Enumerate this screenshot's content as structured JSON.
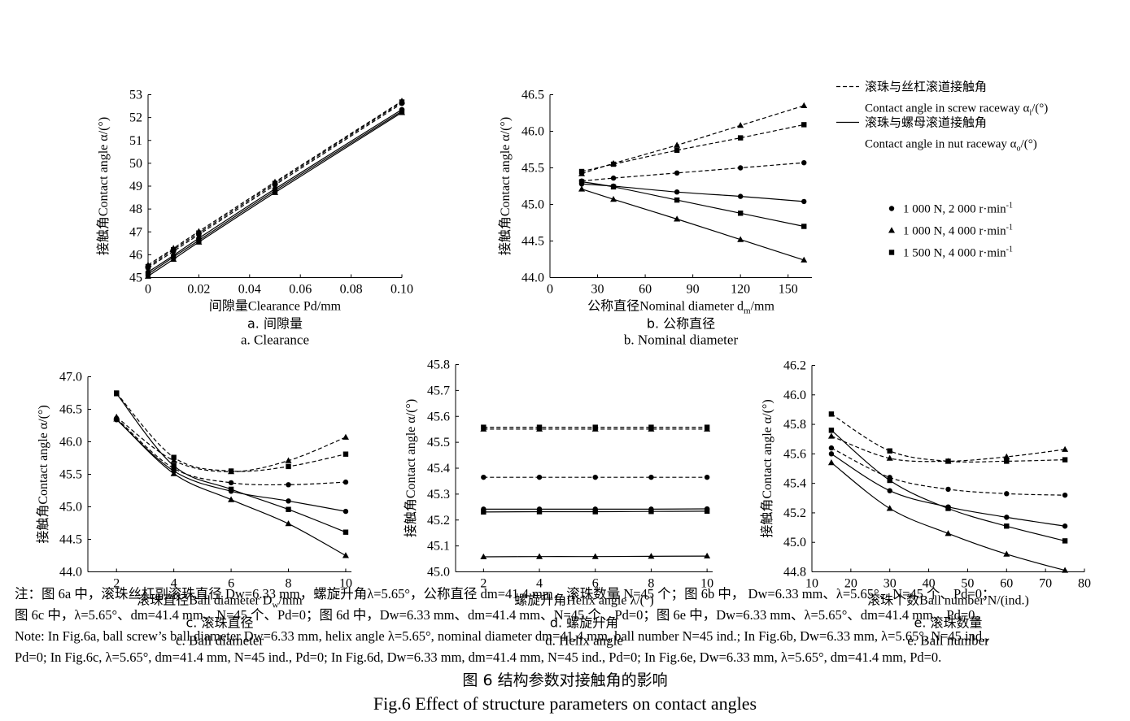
{
  "legend": {
    "line_items": [
      {
        "zh": "滚珠与丝杠滚道接触角",
        "en": "Contact angle in screw raceway α",
        "sub": "i",
        "unit": "/(°)",
        "style": "dashed"
      },
      {
        "zh": "滚珠与螺母滚道接触角",
        "en": "Contact angle in nut raceway α",
        "sub": "o",
        "unit": "/(°)",
        "style": "solid"
      }
    ],
    "marker_items": [
      {
        "label": "1 000 N, 2 000 r·min",
        "sup": "-1",
        "marker": "circle"
      },
      {
        "label": "1 000 N, 4 000 r·min",
        "sup": "-1",
        "marker": "triangle"
      },
      {
        "label": "1 500 N, 4 000 r·min",
        "sup": "-1",
        "marker": "square"
      }
    ]
  },
  "chart_data": [
    {
      "id": "a",
      "type": "line",
      "xlabel": "间隙量Clearance Pd/mm",
      "ylabel": "接触角Contact angle α/(°)",
      "caption_zh": "a. 间隙量",
      "caption_en": "a. Clearance",
      "xlim": [
        0,
        0.1
      ],
      "ylim": [
        45,
        53
      ],
      "xticks": [
        0,
        0.02,
        0.04,
        0.06,
        0.08,
        0.1
      ],
      "xtick_labels": [
        "0",
        "0.02",
        "0.04",
        "0.06",
        "0.08",
        "0.10"
      ],
      "yticks": [
        45,
        46,
        47,
        48,
        49,
        50,
        51,
        52,
        53
      ],
      "ytick_labels": [
        "45",
        "46",
        "47",
        "48",
        "49",
        "50",
        "51",
        "52",
        "53"
      ],
      "series": [
        {
          "marker": "circle",
          "style": "dashed",
          "x": [
            0,
            0.01,
            0.02,
            0.05,
            0.1
          ],
          "y": [
            45.42,
            46.15,
            46.88,
            49.05,
            52.62
          ]
        },
        {
          "marker": "triangle",
          "style": "dashed",
          "x": [
            0,
            0.01,
            0.02,
            0.05,
            0.1
          ],
          "y": [
            45.55,
            46.28,
            47.02,
            49.18,
            52.72
          ]
        },
        {
          "marker": "square",
          "style": "dashed",
          "x": [
            0,
            0.01,
            0.02,
            0.05,
            0.1
          ],
          "y": [
            45.48,
            46.22,
            46.95,
            49.12,
            52.68
          ]
        },
        {
          "marker": "circle",
          "style": "solid",
          "x": [
            0,
            0.01,
            0.02,
            0.05,
            0.1
          ],
          "y": [
            45.24,
            45.97,
            46.72,
            48.88,
            52.35
          ]
        },
        {
          "marker": "triangle",
          "style": "solid",
          "x": [
            0,
            0.01,
            0.02,
            0.05,
            0.1
          ],
          "y": [
            45.06,
            45.8,
            46.55,
            48.72,
            52.22
          ]
        },
        {
          "marker": "square",
          "style": "solid",
          "x": [
            0,
            0.01,
            0.02,
            0.05,
            0.1
          ],
          "y": [
            45.15,
            45.9,
            46.63,
            48.8,
            52.28
          ]
        }
      ]
    },
    {
      "id": "b",
      "type": "line",
      "xlabel": "公称直径Nominal diameter d",
      "xlabel_sub": "m",
      "xlabel_tail": "/mm",
      "ylabel": "接触角Contact angle α/(°)",
      "caption_zh": "b. 公称直径",
      "caption_en": "b. Nominal diameter",
      "xlim": [
        0,
        165
      ],
      "ylim": [
        44.0,
        46.5
      ],
      "xticks": [
        0,
        30,
        60,
        90,
        120,
        150
      ],
      "xtick_labels": [
        "0",
        "30",
        "60",
        "90",
        "120",
        "150"
      ],
      "yticks": [
        44.0,
        44.5,
        45.0,
        45.5,
        46.0,
        46.5
      ],
      "ytick_labels": [
        "44.0",
        "44.5",
        "45.0",
        "45.5",
        "46.0",
        "46.5"
      ],
      "series": [
        {
          "marker": "circle",
          "style": "dashed",
          "x": [
            20,
            40,
            80,
            120,
            160
          ],
          "y": [
            45.32,
            45.36,
            45.43,
            45.5,
            45.57
          ]
        },
        {
          "marker": "triangle",
          "style": "dashed",
          "x": [
            20,
            40,
            80,
            120,
            160
          ],
          "y": [
            45.42,
            45.56,
            45.81,
            46.08,
            46.35
          ]
        },
        {
          "marker": "square",
          "style": "dashed",
          "x": [
            20,
            40,
            80,
            120,
            160
          ],
          "y": [
            45.45,
            45.55,
            45.74,
            45.91,
            46.09
          ]
        },
        {
          "marker": "circle",
          "style": "solid",
          "x": [
            20,
            40,
            80,
            120,
            160
          ],
          "y": [
            45.28,
            45.25,
            45.17,
            45.11,
            45.04
          ]
        },
        {
          "marker": "triangle",
          "style": "solid",
          "x": [
            20,
            40,
            80,
            120,
            160
          ],
          "y": [
            45.21,
            45.07,
            44.8,
            44.52,
            44.24
          ]
        },
        {
          "marker": "square",
          "style": "solid",
          "x": [
            20,
            40,
            80,
            120,
            160
          ],
          "y": [
            45.31,
            45.24,
            45.06,
            44.88,
            44.7
          ]
        }
      ]
    },
    {
      "id": "c",
      "type": "line",
      "xlabel": "滚珠直径Ball diameter D",
      "xlabel_sub": "w",
      "xlabel_tail": "/mm",
      "ylabel": "接触角Contact angle α/(°)",
      "caption_zh": "c. 滚珠直径",
      "caption_en": "c. Ball diameter",
      "xlim": [
        1,
        10.2
      ],
      "ylim": [
        44.0,
        47.0
      ],
      "xticks": [
        2,
        4,
        6,
        8,
        10
      ],
      "xtick_labels": [
        "2",
        "4",
        "6",
        "8",
        "10"
      ],
      "yticks": [
        44.0,
        44.5,
        45.0,
        45.5,
        46.0,
        46.5,
        47.0
      ],
      "ytick_labels": [
        "44.0",
        "44.5",
        "45.0",
        "45.5",
        "46.0",
        "46.5",
        "47.0"
      ],
      "series": [
        {
          "marker": "circle",
          "style": "dashed",
          "x": [
            2,
            4,
            6,
            8,
            10
          ],
          "y": [
            46.36,
            45.59,
            45.37,
            45.34,
            45.38
          ]
        },
        {
          "marker": "triangle",
          "style": "dashed",
          "x": [
            2,
            4,
            6,
            8,
            10
          ],
          "y": [
            46.38,
            45.71,
            45.54,
            45.71,
            46.07
          ]
        },
        {
          "marker": "square",
          "style": "dashed",
          "x": [
            2,
            4,
            6,
            8,
            10
          ],
          "y": [
            46.75,
            45.76,
            45.55,
            45.62,
            45.81
          ]
        },
        {
          "marker": "circle",
          "style": "solid",
          "x": [
            2,
            4,
            6,
            8,
            10
          ],
          "y": [
            46.34,
            45.55,
            45.24,
            45.09,
            44.93
          ]
        },
        {
          "marker": "triangle",
          "style": "solid",
          "x": [
            2,
            4,
            6,
            8,
            10
          ],
          "y": [
            46.35,
            45.51,
            45.11,
            44.74,
            44.25
          ]
        },
        {
          "marker": "square",
          "style": "solid",
          "x": [
            2,
            4,
            6,
            8,
            10
          ],
          "y": [
            46.74,
            45.63,
            45.27,
            44.96,
            44.61
          ]
        }
      ]
    },
    {
      "id": "d",
      "type": "line",
      "xlabel": "螺旋升角Helix angle λ/(°)",
      "ylabel": "接触角Contact angle α/(°)",
      "caption_zh": "d. 螺旋升角",
      "caption_en": "d. Helix angle",
      "xlim": [
        1,
        10.2
      ],
      "ylim": [
        45.0,
        45.8
      ],
      "xticks": [
        2,
        4,
        6,
        8,
        10
      ],
      "xtick_labels": [
        "2",
        "4",
        "6",
        "8",
        "10"
      ],
      "yticks": [
        45.0,
        45.1,
        45.2,
        45.3,
        45.4,
        45.5,
        45.6,
        45.7,
        45.8
      ],
      "ytick_labels": [
        "45.0",
        "45.1",
        "45.2",
        "45.3",
        "45.4",
        "45.5",
        "45.6",
        "45.7",
        "45.8"
      ],
      "series": [
        {
          "marker": "circle",
          "style": "dashed",
          "x": [
            2,
            4,
            6,
            8,
            10
          ],
          "y": [
            45.365,
            45.365,
            45.365,
            45.365,
            45.365
          ]
        },
        {
          "marker": "triangle",
          "style": "dashed",
          "x": [
            2,
            4,
            6,
            8,
            10
          ],
          "y": [
            45.551,
            45.551,
            45.551,
            45.551,
            45.551
          ]
        },
        {
          "marker": "square",
          "style": "dashed",
          "x": [
            2,
            4,
            6,
            8,
            10
          ],
          "y": [
            45.558,
            45.558,
            45.558,
            45.558,
            45.558
          ]
        },
        {
          "marker": "circle",
          "style": "solid",
          "x": [
            2,
            4,
            6,
            8,
            10
          ],
          "y": [
            45.242,
            45.242,
            45.242,
            45.242,
            45.243
          ]
        },
        {
          "marker": "triangle",
          "style": "solid",
          "x": [
            2,
            4,
            6,
            8,
            10
          ],
          "y": [
            45.058,
            45.059,
            45.059,
            45.06,
            45.061
          ]
        },
        {
          "marker": "square",
          "style": "solid",
          "x": [
            2,
            4,
            6,
            8,
            10
          ],
          "y": [
            45.231,
            45.232,
            45.232,
            45.233,
            45.234
          ]
        }
      ]
    },
    {
      "id": "e",
      "type": "line",
      "xlabel": "滚珠个数Ball number N/(ind.)",
      "ylabel": "接触角Contact angle α/(°)",
      "caption_zh": "e. 滚珠数量",
      "caption_en": "e. Ball number",
      "xlim": [
        10,
        80
      ],
      "ylim": [
        44.8,
        46.2
      ],
      "xticks": [
        10,
        20,
        30,
        40,
        50,
        60,
        70,
        80
      ],
      "xtick_labels": [
        "10",
        "20",
        "30",
        "40",
        "50",
        "60",
        "70",
        "80"
      ],
      "yticks": [
        44.8,
        45.0,
        45.2,
        45.4,
        45.6,
        45.8,
        46.0,
        46.2
      ],
      "ytick_labels": [
        "44.8",
        "45.0",
        "45.2",
        "45.4",
        "45.6",
        "45.8",
        "46.0",
        "46.2"
      ],
      "series": [
        {
          "marker": "circle",
          "style": "dashed",
          "x": [
            15,
            30,
            45,
            60,
            75
          ],
          "y": [
            45.64,
            45.44,
            45.36,
            45.33,
            45.32
          ]
        },
        {
          "marker": "triangle",
          "style": "dashed",
          "x": [
            15,
            30,
            45,
            60,
            75
          ],
          "y": [
            45.72,
            45.57,
            45.55,
            45.58,
            45.63
          ]
        },
        {
          "marker": "square",
          "style": "dashed",
          "x": [
            15,
            30,
            45,
            60,
            75
          ],
          "y": [
            45.87,
            45.62,
            45.55,
            45.55,
            45.56
          ]
        },
        {
          "marker": "circle",
          "style": "solid",
          "x": [
            15,
            30,
            45,
            60,
            75
          ],
          "y": [
            45.6,
            45.35,
            45.24,
            45.17,
            45.11
          ]
        },
        {
          "marker": "triangle",
          "style": "solid",
          "x": [
            15,
            30,
            45,
            60,
            75
          ],
          "y": [
            45.54,
            45.23,
            45.06,
            44.92,
            44.81
          ]
        },
        {
          "marker": "square",
          "style": "solid",
          "x": [
            15,
            30,
            45,
            60,
            75
          ],
          "y": [
            45.76,
            45.42,
            45.23,
            45.11,
            45.01
          ]
        }
      ]
    }
  ],
  "note_lines": [
    "注：图 6a 中，滚珠丝杠副滚珠直径 Dw=6.33 mm，螺旋升角λ=5.65°，公称直径 dm=41.4 mm，滚珠数量 N=45 个；图 6b 中， Dw=6.33 mm、λ=5.65°、N=45 个、Pd=0；",
    "图 6c 中，λ=5.65°、dm=41.4 mm、N=45 个、Pd=0；图 6d 中，Dw=6.33 mm、dm=41.4 mm、N=45 个、Pd=0；图 6e 中，Dw=6.33 mm、λ=5.65°、dm=41.4 mm、Pd=0。",
    "Note: In Fig.6a, ball screw’s ball diameter Dw=6.33 mm, helix angle λ=5.65°, nominal diameter dm=41.4 mm, ball number N=45 ind.; In Fig.6b, Dw=6.33 mm, λ=5.65°, N=45 ind.,",
    "Pd=0; In Fig.6c, λ=5.65°, dm=41.4 mm, N=45 ind., Pd=0; In Fig.6d, Dw=6.33 mm, dm=41.4 mm, N=45 ind., Pd=0; In Fig.6e, Dw=6.33 mm, λ=5.65°, dm=41.4 mm, Pd=0."
  ],
  "fig_title_zh": "图 6   结构参数对接触角的影响",
  "fig_title_en": "Fig.6    Effect of structure parameters on contact angles"
}
